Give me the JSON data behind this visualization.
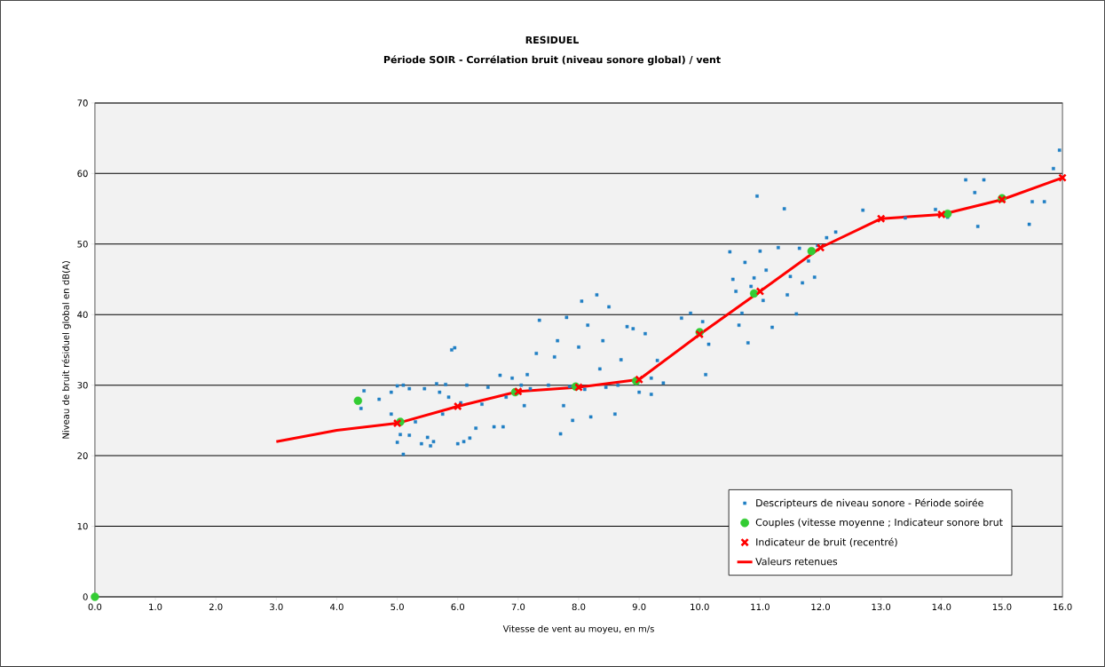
{
  "chart_data": {
    "type": "scatter",
    "title": "RESIDUEL",
    "subtitle": "Période SOIR - Corrélation bruit (niveau sonore global) / vent",
    "xlabel": "Vitesse de vent au moyeu, en m/s",
    "ylabel": "Niveau de bruit résiduel global en dB(A)",
    "xlim": [
      0,
      16
    ],
    "ylim": [
      0,
      70
    ],
    "xticks": [
      {
        "value": 0,
        "label": "0.0"
      },
      {
        "value": 1,
        "label": "1.0"
      },
      {
        "value": 2,
        "label": "2.0"
      },
      {
        "value": 3,
        "label": "3.0"
      },
      {
        "value": 4,
        "label": "4.0"
      },
      {
        "value": 5,
        "label": "5.0"
      },
      {
        "value": 6,
        "label": "6.0"
      },
      {
        "value": 7,
        "label": "7.0"
      },
      {
        "value": 8,
        "label": "8.0"
      },
      {
        "value": 9,
        "label": "9.0"
      },
      {
        "value": 10,
        "label": "10.0"
      },
      {
        "value": 11,
        "label": "11.0"
      },
      {
        "value": 12,
        "label": "12.0"
      },
      {
        "value": 13,
        "label": "13.0"
      },
      {
        "value": 14,
        "label": "14.0"
      },
      {
        "value": 15,
        "label": "15.0"
      },
      {
        "value": 16,
        "label": "16.0"
      }
    ],
    "yticks": [
      0,
      10,
      20,
      30,
      40,
      50,
      60,
      70
    ],
    "grid": "y",
    "legend": "bottom right",
    "series": [
      {
        "name": "Descripteurs de niveau sonore - Période soirée",
        "marker": "square",
        "color": "#1f7fc4",
        "x": [
          4.4,
          4.45,
          4.7,
          4.9,
          4.9,
          5.0,
          5.0,
          5.05,
          5.1,
          5.1,
          5.2,
          5.2,
          5.3,
          5.4,
          5.45,
          5.5,
          5.55,
          5.6,
          5.65,
          5.7,
          5.75,
          5.8,
          5.85,
          5.9,
          5.95,
          6.0,
          6.05,
          6.1,
          6.15,
          6.2,
          6.3,
          6.4,
          6.5,
          6.6,
          6.7,
          6.75,
          6.8,
          6.9,
          7.0,
          7.05,
          7.1,
          7.15,
          7.2,
          7.3,
          7.35,
          7.5,
          7.6,
          7.65,
          7.7,
          7.75,
          7.8,
          7.85,
          7.9,
          8.0,
          8.05,
          8.1,
          8.15,
          8.2,
          8.3,
          8.35,
          8.4,
          8.45,
          8.5,
          8.6,
          8.65,
          8.7,
          8.8,
          8.9,
          9.0,
          9.1,
          9.2,
          9.3,
          9.4,
          9.2,
          9.7,
          9.85,
          10.0,
          10.1,
          10.05,
          10.15,
          10.5,
          10.55,
          10.6,
          10.65,
          10.7,
          10.75,
          10.8,
          10.85,
          10.9,
          10.95,
          11.0,
          11.05,
          11.1,
          11.2,
          11.3,
          11.4,
          11.45,
          11.5,
          11.6,
          11.65,
          11.7,
          11.8,
          11.9,
          11.95,
          12.1,
          12.25,
          12.7,
          13.4,
          13.9,
          14.1,
          14.4,
          14.55,
          14.6,
          14.7,
          15.5,
          15.45,
          15.7,
          15.85,
          15.95
        ],
        "values": [
          26.7,
          29.2,
          28.0,
          25.9,
          29.0,
          29.9,
          21.9,
          23.0,
          20.2,
          30.0,
          22.9,
          29.5,
          24.8,
          21.7,
          29.5,
          22.6,
          21.4,
          22.0,
          30.2,
          29.0,
          25.9,
          30.1,
          28.3,
          35.0,
          35.3,
          21.7,
          27.5,
          22.0,
          30.0,
          22.5,
          23.9,
          27.3,
          29.7,
          24.1,
          31.4,
          24.1,
          28.3,
          31.0,
          28.9,
          30.0,
          27.1,
          31.5,
          29.5,
          34.5,
          39.2,
          30.0,
          34.0,
          36.3,
          23.1,
          27.1,
          39.6,
          29.8,
          25.0,
          35.4,
          41.9,
          29.4,
          38.5,
          25.5,
          42.8,
          32.3,
          36.3,
          29.7,
          41.1,
          25.9,
          30.0,
          33.6,
          38.3,
          38.0,
          29.0,
          37.3,
          31.0,
          33.5,
          30.3,
          28.7,
          39.5,
          40.2,
          null,
          31.5,
          39.0,
          35.8,
          48.9,
          45.0,
          43.3,
          38.5,
          40.2,
          47.4,
          36.0,
          44.0,
          45.2,
          56.8,
          49.0,
          42.0,
          46.3,
          38.2,
          49.5,
          55.0,
          42.8,
          45.4,
          40.1,
          49.4,
          44.5,
          47.6,
          45.3,
          49.8,
          50.9,
          51.7,
          54.8,
          53.7,
          54.9,
          53.8,
          59.1,
          57.3,
          52.5,
          59.1,
          56.0,
          52.8,
          56.0,
          60.7,
          63.3
        ]
      },
      {
        "name": "Couples (vitesse moyenne ; Indicateur sonore brut",
        "marker": "circle",
        "color": "#33cc33",
        "x": [
          0,
          4.35,
          5.05,
          6.95,
          7.95,
          8.95,
          10.0,
          10.9,
          11.85,
          14.1,
          15.0
        ],
        "values": [
          0,
          27.8,
          24.8,
          29.0,
          29.8,
          30.6,
          37.5,
          43.0,
          49.0,
          54.3,
          56.5
        ]
      },
      {
        "name": "Indicateur de bruit (recentré)",
        "marker": "cross",
        "color": "#ff0000",
        "x": [
          5,
          6,
          7,
          8,
          9,
          10,
          11,
          12,
          13,
          14,
          15,
          16
        ],
        "values": [
          24.6,
          27.0,
          29.1,
          29.7,
          30.8,
          37.2,
          43.3,
          49.5,
          53.6,
          54.2,
          56.3,
          59.4
        ]
      },
      {
        "name": "Valeurs retenues",
        "type": "line",
        "marker": "none",
        "line_style": "solid",
        "color": "#ff0000",
        "x": [
          3,
          4,
          5,
          6,
          7,
          8,
          9,
          10,
          11,
          12,
          13,
          14,
          15,
          16
        ],
        "values": [
          22.0,
          23.6,
          24.6,
          27.0,
          29.1,
          29.7,
          30.8,
          37.2,
          43.3,
          49.5,
          53.6,
          54.2,
          56.3,
          59.4
        ]
      }
    ]
  }
}
